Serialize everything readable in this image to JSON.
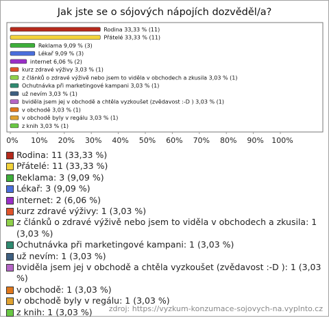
{
  "chart_data": {
    "type": "bar",
    "orientation": "horizontal",
    "title": "Jak jste se o sójových nápojích dozvěděl/a?",
    "categories": [
      "Rodina",
      "Přátelé",
      "Reklama",
      "Lékař",
      "internet",
      "kurz zdravé výživy",
      "z článků o zdravé výživě nebo jsem to viděla v obchodech a zkusila",
      "Ochutnávka při marketingové kampani",
      "už nevím",
      "bviděla jsem jej v obchodě a chtěla vyzkoušet (zvědavost :-D )",
      "v obchodě",
      "v obchodě byly v regálu",
      "z knih"
    ],
    "values": [
      33.33,
      33.33,
      9.09,
      9.09,
      6.06,
      3.03,
      3.03,
      3.03,
      3.03,
      3.03,
      3.03,
      3.03,
      3.03
    ],
    "value_labels": [
      "Rodina 33,33 % (11)",
      "Přátelé 33,33 % (11)",
      "Reklama 9,09 % (3)",
      "Lékař 9,09 % (3)",
      "internet 6,06 % (2)",
      "kurz zdravé výživy 3,03 % (1)",
      "z článků o zdravé výživě nebo jsem to viděla v obchodech a zkusila 3,03 % (1)",
      "Ochutnávka při marketingové kampani 3,03 % (1)",
      "už nevím 3,03 % (1)",
      "bviděla jsem jej v obchodě a chtěla vyzkoušet (zvědavost :-D ) 3,03 % (1)",
      "v obchodě 3,03 % (1)",
      "v obchodě byly v regálu 3,03 % (1)",
      "z knih 3,03 % (1)"
    ],
    "colors": [
      "#b52a1c",
      "#f2d23a",
      "#3dae3a",
      "#4a6fdc",
      "#9a2fc8",
      "#e0542a",
      "#8fd04a",
      "#2f8a70",
      "#3e5f80",
      "#b566c6",
      "#e0781c",
      "#e0a231",
      "#69c844"
    ],
    "legend": [
      "Rodina: 11 (33,33 %)",
      "Přátelé: 11 (33,33 %)",
      "Reklama: 3 (9,09 %)",
      "Lékař: 3 (9,09 %)",
      "internet: 2 (6,06 %)",
      "kurz zdravé výživy: 1 (3,03 %)",
      "z článků o zdravé výživě nebo jsem to viděla v obchodech a zkusila: 1 (3,03 %)",
      "Ochutnávka při marketingové kampani: 1 (3,03 %)",
      "už nevím: 1 (3,03 %)",
      "bviděla jsem jej v obchodě a chtěla vyzkoušet (zvědavost :-D ): 1 (3,03 %)",
      "v obchodě: 1 (3,03 %)",
      "v obchodě byly v regálu: 1 (3,03 %)",
      "z knih: 1 (3,03 %)"
    ],
    "xlim": [
      0,
      100
    ],
    "xticks": [
      {
        "value": 0,
        "label": "0%"
      },
      {
        "value": 10,
        "label": "10%"
      },
      {
        "value": 20,
        "label": "20%"
      },
      {
        "value": 30,
        "label": "30%"
      },
      {
        "value": 40,
        "label": "40%"
      },
      {
        "value": 50,
        "label": "50%"
      },
      {
        "value": 60,
        "label": "60%"
      },
      {
        "value": 70,
        "label": "70%"
      },
      {
        "value": 80,
        "label": "80%"
      },
      {
        "value": 90,
        "label": "90%"
      },
      {
        "value": 100,
        "label": "100%"
      }
    ],
    "grid": false,
    "source": "zdroj: https://vyzkum-konzumace-sojovych-na.vyplnto.cz"
  }
}
